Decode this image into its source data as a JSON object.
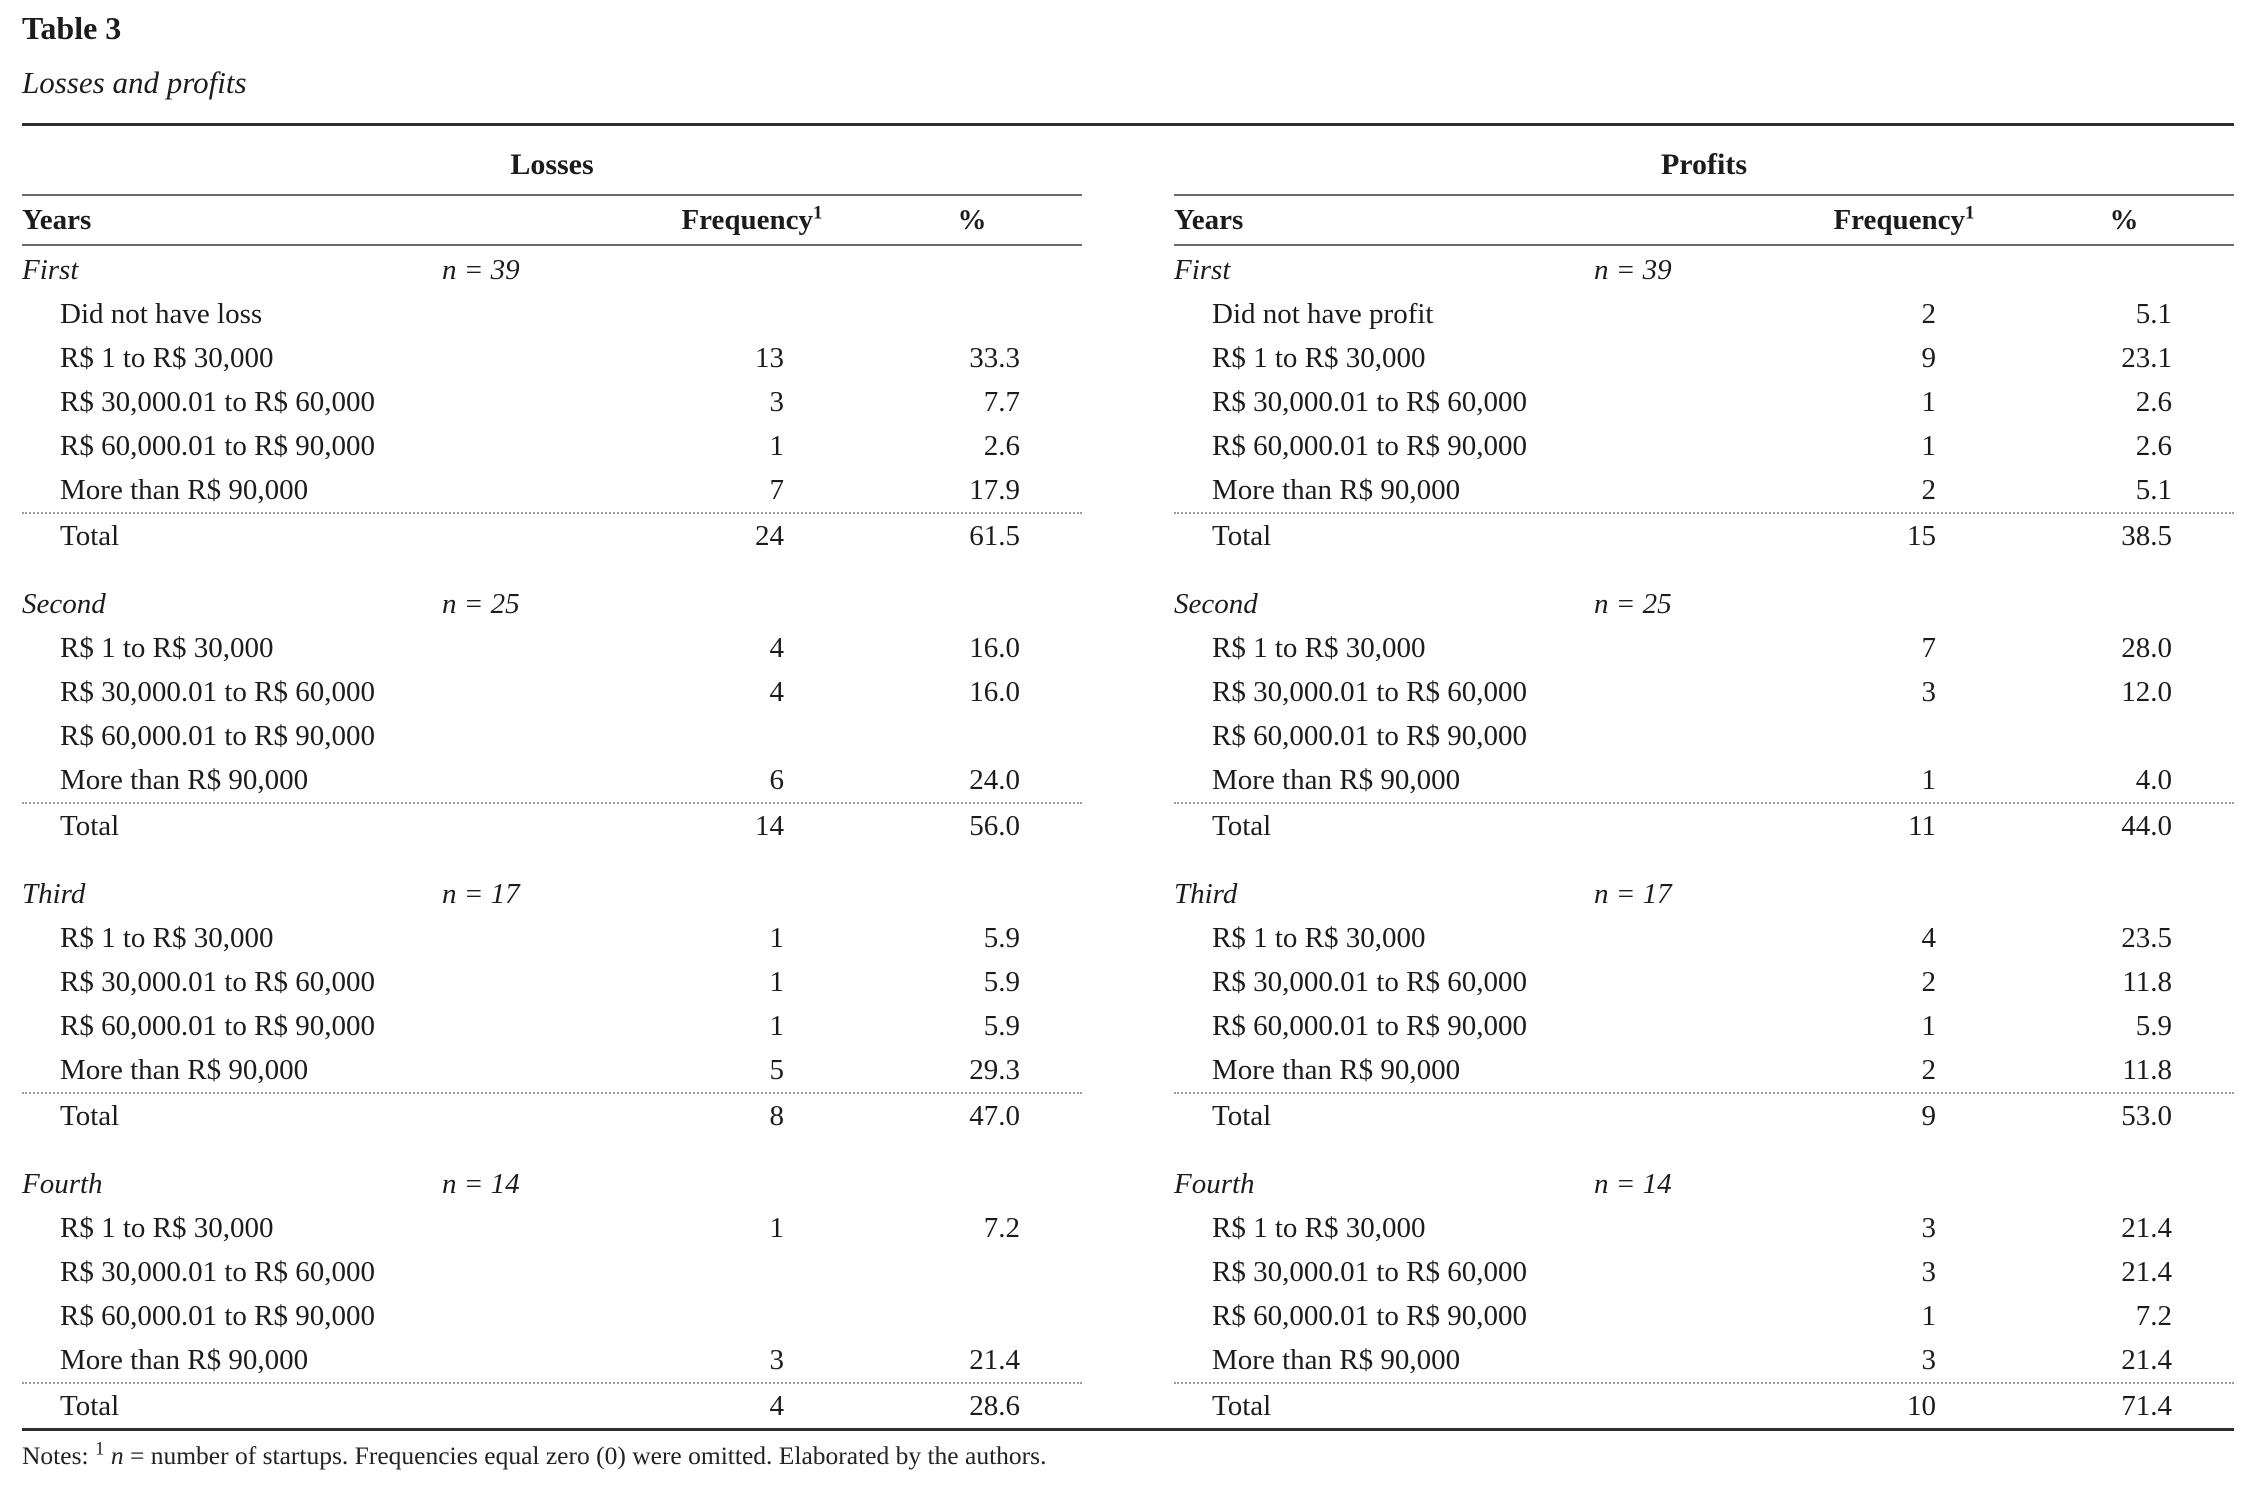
{
  "doc": {
    "title": "Table 3",
    "subtitle": "Losses and profits"
  },
  "columns": {
    "years": "Years",
    "frequency": "Frequency",
    "frequency_sup": "1",
    "percent": "%"
  },
  "notes": {
    "label": "Notes:",
    "sup": "1",
    "var": "n",
    "rest": "= number of startups. Frequencies equal zero (0) were omitted. Elaborated by the authors."
  },
  "tables": [
    {
      "name": "Losses",
      "groups": [
        {
          "year": "First",
          "n": "n = 39",
          "rows": [
            {
              "label": "Did not have loss",
              "freq": "",
              "pct": ""
            },
            {
              "label": "R$ 1 to R$ 30,000",
              "freq": "13",
              "pct": "33.3"
            },
            {
              "label": "R$ 30,000.01 to R$ 60,000",
              "freq": "3",
              "pct": "7.7"
            },
            {
              "label": "R$ 60,000.01 to R$ 90,000",
              "freq": "1",
              "pct": "2.6"
            },
            {
              "label": "More than R$ 90,000",
              "freq": "7",
              "pct": "17.9"
            }
          ],
          "total": {
            "label": "Total",
            "freq": "24",
            "pct": "61.5"
          }
        },
        {
          "year": "Second",
          "n": "n = 25",
          "rows": [
            {
              "label": "R$ 1 to R$ 30,000",
              "freq": "4",
              "pct": "16.0"
            },
            {
              "label": "R$ 30,000.01 to R$ 60,000",
              "freq": "4",
              "pct": "16.0"
            },
            {
              "label": "R$ 60,000.01 to R$ 90,000",
              "freq": "",
              "pct": ""
            },
            {
              "label": "More than R$ 90,000",
              "freq": "6",
              "pct": "24.0"
            }
          ],
          "total": {
            "label": "Total",
            "freq": "14",
            "pct": "56.0"
          }
        },
        {
          "year": "Third",
          "n": "n = 17",
          "rows": [
            {
              "label": "R$ 1 to R$ 30,000",
              "freq": "1",
              "pct": "5.9"
            },
            {
              "label": "R$ 30,000.01 to R$ 60,000",
              "freq": "1",
              "pct": "5.9"
            },
            {
              "label": "R$ 60,000.01 to R$ 90,000",
              "freq": "1",
              "pct": "5.9"
            },
            {
              "label": "More than R$ 90,000",
              "freq": "5",
              "pct": "29.3"
            }
          ],
          "total": {
            "label": "Total",
            "freq": "8",
            "pct": "47.0"
          }
        },
        {
          "year": "Fourth",
          "n": "n = 14",
          "rows": [
            {
              "label": "R$ 1 to R$ 30,000",
              "freq": "1",
              "pct": "7.2"
            },
            {
              "label": "R$ 30,000.01 to R$ 60,000",
              "freq": "",
              "pct": ""
            },
            {
              "label": "R$ 60,000.01 to R$ 90,000",
              "freq": "",
              "pct": ""
            },
            {
              "label": "More than R$ 90,000",
              "freq": "3",
              "pct": "21.4"
            }
          ],
          "total": {
            "label": "Total",
            "freq": "4",
            "pct": "28.6"
          }
        }
      ]
    },
    {
      "name": "Profits",
      "groups": [
        {
          "year": "First",
          "n": "n = 39",
          "rows": [
            {
              "label": "Did not have profit",
              "freq": "2",
              "pct": "5.1"
            },
            {
              "label": "R$ 1 to R$ 30,000",
              "freq": "9",
              "pct": "23.1"
            },
            {
              "label": "R$ 30,000.01 to R$ 60,000",
              "freq": "1",
              "pct": "2.6"
            },
            {
              "label": "R$ 60,000.01 to R$ 90,000",
              "freq": "1",
              "pct": "2.6"
            },
            {
              "label": "More than R$ 90,000",
              "freq": "2",
              "pct": "5.1"
            }
          ],
          "total": {
            "label": "Total",
            "freq": "15",
            "pct": "38.5"
          }
        },
        {
          "year": "Second",
          "n": "n = 25",
          "rows": [
            {
              "label": "R$ 1 to R$ 30,000",
              "freq": "7",
              "pct": "28.0"
            },
            {
              "label": "R$ 30,000.01 to R$ 60,000",
              "freq": "3",
              "pct": "12.0"
            },
            {
              "label": "R$ 60,000.01 to R$ 90,000",
              "freq": "",
              "pct": ""
            },
            {
              "label": "More than R$ 90,000",
              "freq": "1",
              "pct": "4.0"
            }
          ],
          "total": {
            "label": "Total",
            "freq": "11",
            "pct": "44.0"
          }
        },
        {
          "year": "Third",
          "n": "n = 17",
          "rows": [
            {
              "label": "R$ 1 to R$ 30,000",
              "freq": "4",
              "pct": "23.5"
            },
            {
              "label": "R$ 30,000.01 to R$ 60,000",
              "freq": "2",
              "pct": "11.8"
            },
            {
              "label": "R$ 60,000.01 to R$ 90,000",
              "freq": "1",
              "pct": "5.9"
            },
            {
              "label": "More than R$ 90,000",
              "freq": "2",
              "pct": "11.8"
            }
          ],
          "total": {
            "label": "Total",
            "freq": "9",
            "pct": "53.0"
          }
        },
        {
          "year": "Fourth",
          "n": "n = 14",
          "rows": [
            {
              "label": "R$ 1 to R$ 30,000",
              "freq": "3",
              "pct": "21.4"
            },
            {
              "label": "R$ 30,000.01 to R$ 60,000",
              "freq": "3",
              "pct": "21.4"
            },
            {
              "label": "R$ 60,000.01 to R$ 90,000",
              "freq": "1",
              "pct": "7.2"
            },
            {
              "label": "More than R$ 90,000",
              "freq": "3",
              "pct": "21.4"
            }
          ],
          "total": {
            "label": "Total",
            "freq": "10",
            "pct": "71.4"
          }
        }
      ]
    }
  ]
}
